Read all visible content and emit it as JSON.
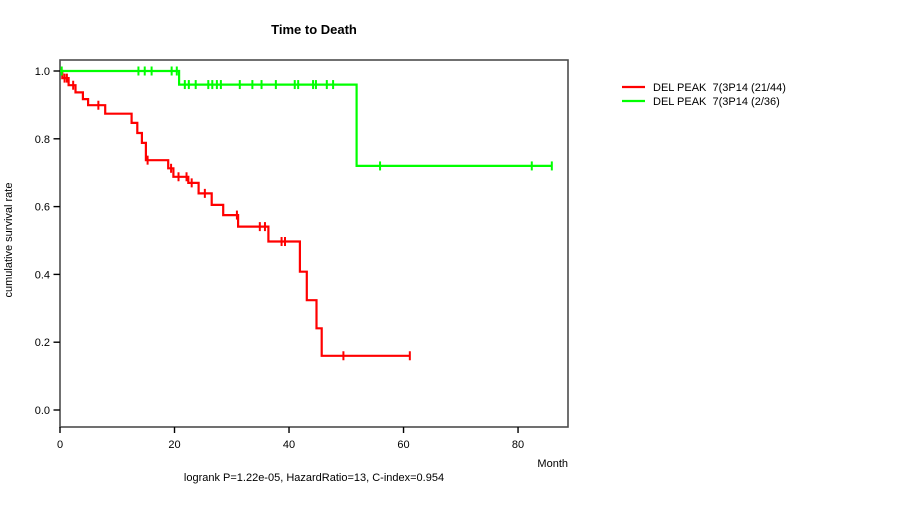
{
  "title": "Time to Death",
  "footer": "logrank P=1.22e-05, HazardRatio=13, C-index=0.954",
  "x_axis": {
    "label": "Month",
    "tick_labels": [
      "0",
      "20",
      "40",
      "60",
      "80"
    ],
    "tick_values": [
      0,
      20,
      40,
      60,
      80
    ]
  },
  "y_axis": {
    "label": "cumulative survival rate",
    "tick_labels": [
      "0.0",
      "0.2",
      "0.4",
      "0.6",
      "0.8",
      "1.0"
    ],
    "tick_values": [
      0,
      0.2,
      0.4,
      0.6,
      0.8,
      1.0
    ]
  },
  "legend": {
    "position": "right-outside"
  },
  "colors": {
    "group1": "#ff0000",
    "group2": "#00ff00",
    "box": "#4d4d4d",
    "ticks": "#000000"
  },
  "chart_data": {
    "type": "line",
    "subtype": "kaplan-meier-step",
    "title": "Time to Death",
    "xlabel": "Month",
    "ylabel": "cumulative survival rate",
    "xlim": [
      0,
      88.7
    ],
    "ylim": [
      -0.05,
      1.03
    ],
    "grid": false,
    "legend_position": "right-outside",
    "annotation": "logrank P=1.22e-05, HazardRatio=13, C-index=0.954",
    "series": [
      {
        "name": "DEL PEAK  7(3P14 (21/44)",
        "color": "#ff0000",
        "end_time": 61.1,
        "steps": [
          [
            0,
            1.0
          ],
          [
            0.4,
            0.979
          ],
          [
            1.5,
            0.958
          ],
          [
            2.7,
            0.937
          ],
          [
            4.0,
            0.917
          ],
          [
            4.9,
            0.899
          ],
          [
            7.9,
            0.874
          ],
          [
            12.5,
            0.847
          ],
          [
            13.5,
            0.817
          ],
          [
            14.3,
            0.788
          ],
          [
            15.0,
            0.737
          ],
          [
            18.9,
            0.713
          ],
          [
            19.8,
            0.688
          ],
          [
            22.4,
            0.67
          ],
          [
            24.2,
            0.639
          ],
          [
            26.5,
            0.605
          ],
          [
            28.5,
            0.575
          ],
          [
            31.1,
            0.541
          ],
          [
            36.4,
            0.497
          ],
          [
            41.9,
            0.408
          ],
          [
            43.1,
            0.324
          ],
          [
            44.8,
            0.241
          ],
          [
            45.7,
            0.16
          ]
        ],
        "censor_marks": [
          [
            0.8,
            0.979
          ],
          [
            1.2,
            0.979
          ],
          [
            2.3,
            0.958
          ],
          [
            6.7,
            0.899
          ],
          [
            15.3,
            0.737
          ],
          [
            19.4,
            0.713
          ],
          [
            20.7,
            0.688
          ],
          [
            22.1,
            0.688
          ],
          [
            23.0,
            0.67
          ],
          [
            25.3,
            0.639
          ],
          [
            30.9,
            0.575
          ],
          [
            34.9,
            0.541
          ],
          [
            35.8,
            0.541
          ],
          [
            38.7,
            0.497
          ],
          [
            39.3,
            0.497
          ],
          [
            49.5,
            0.16
          ],
          [
            61.1,
            0.16
          ]
        ]
      },
      {
        "name": "DEL PEAK  7(3P14 (2/36)",
        "color": "#00ff00",
        "end_time": 85.9,
        "steps": [
          [
            0,
            1.0
          ],
          [
            20.8,
            0.96
          ],
          [
            51.8,
            0.72
          ]
        ],
        "censor_marks": [
          [
            0.3,
            1.0
          ],
          [
            13.7,
            1.0
          ],
          [
            14.8,
            1.0
          ],
          [
            16.0,
            1.0
          ],
          [
            19.5,
            1.0
          ],
          [
            20.4,
            1.0
          ],
          [
            21.8,
            0.96
          ],
          [
            22.5,
            0.96
          ],
          [
            23.7,
            0.96
          ],
          [
            25.9,
            0.96
          ],
          [
            26.6,
            0.96
          ],
          [
            27.4,
            0.96
          ],
          [
            28.1,
            0.96
          ],
          [
            31.4,
            0.96
          ],
          [
            33.6,
            0.96
          ],
          [
            35.2,
            0.96
          ],
          [
            37.7,
            0.96
          ],
          [
            41.0,
            0.96
          ],
          [
            41.6,
            0.96
          ],
          [
            44.2,
            0.96
          ],
          [
            44.7,
            0.96
          ],
          [
            46.6,
            0.96
          ],
          [
            47.7,
            0.96
          ],
          [
            55.9,
            0.72
          ],
          [
            82.4,
            0.72
          ],
          [
            85.9,
            0.72
          ]
        ]
      }
    ]
  }
}
